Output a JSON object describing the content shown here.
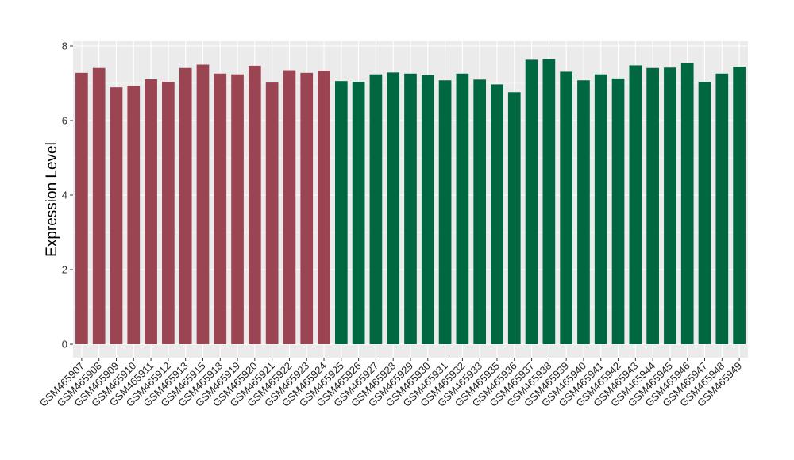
{
  "chart_data": {
    "type": "bar",
    "title": "",
    "xlabel": "",
    "ylabel": "Expression Level",
    "ylim": [
      0,
      8
    ],
    "yticks": [
      0,
      2,
      4,
      6,
      8
    ],
    "grid": true,
    "legend": "none",
    "colors": {
      "group_1": "#9B4452",
      "group_2": "#006841",
      "panel_background": "#EBEBEB",
      "grid_line": "#FFFFFF"
    },
    "categories": [
      "GSM465907",
      "GSM465908",
      "GSM465909",
      "GSM465910",
      "GSM465911",
      "GSM465912",
      "GSM465913",
      "GSM465915",
      "GSM465918",
      "GSM465919",
      "GSM465920",
      "GSM465921",
      "GSM465922",
      "GSM465923",
      "GSM465924",
      "GSM465925",
      "GSM465926",
      "GSM465927",
      "GSM465928",
      "GSM465929",
      "GSM465930",
      "GSM465931",
      "GSM465932",
      "GSM465933",
      "GSM465935",
      "GSM465936",
      "GSM465937",
      "GSM465938",
      "GSM465939",
      "GSM465940",
      "GSM465941",
      "GSM465942",
      "GSM465943",
      "GSM465944",
      "GSM465945",
      "GSM465946",
      "GSM465947",
      "GSM465948",
      "GSM465949"
    ],
    "values": [
      7.28,
      7.41,
      6.89,
      6.93,
      7.11,
      7.04,
      7.41,
      7.5,
      7.26,
      7.24,
      7.47,
      7.02,
      7.35,
      7.28,
      7.34,
      7.06,
      7.04,
      7.24,
      7.29,
      7.26,
      7.22,
      7.08,
      7.26,
      7.1,
      6.97,
      6.76,
      7.63,
      7.65,
      7.31,
      7.08,
      7.24,
      7.13,
      7.48,
      7.41,
      7.42,
      7.54,
      7.04,
      7.26,
      7.44
    ],
    "groups": [
      1,
      1,
      1,
      1,
      1,
      1,
      1,
      1,
      1,
      1,
      1,
      1,
      1,
      1,
      1,
      2,
      2,
      2,
      2,
      2,
      2,
      2,
      2,
      2,
      2,
      2,
      2,
      2,
      2,
      2,
      2,
      2,
      2,
      2,
      2,
      2,
      2,
      2,
      2
    ]
  }
}
